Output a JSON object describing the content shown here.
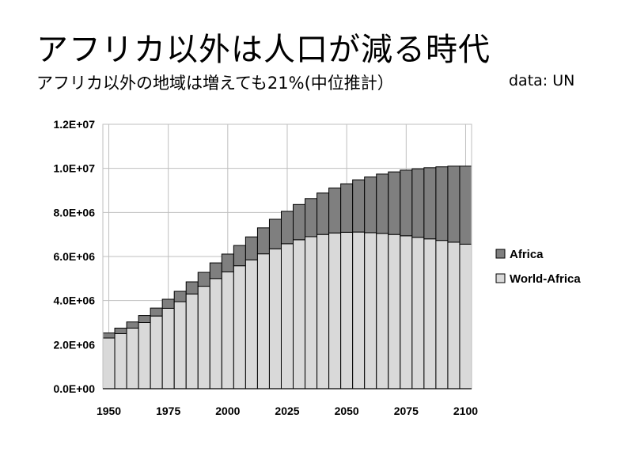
{
  "title": "アフリカ以外は人口が減る時代",
  "subtitle": "アフリカ以外の地域は増えても21%(中位推計）",
  "source": "data:  UN",
  "colors": {
    "africa": "#7f7f7f",
    "world_minus_africa": "#d9d9d9",
    "bar_stroke": "#000000",
    "grid": "#bfbfbf"
  },
  "chart_data": {
    "type": "bar",
    "stacked": true,
    "x": [
      1950,
      1955,
      1960,
      1965,
      1970,
      1975,
      1980,
      1985,
      1990,
      1995,
      2000,
      2005,
      2010,
      2015,
      2020,
      2025,
      2030,
      2035,
      2040,
      2045,
      2050,
      2055,
      2060,
      2065,
      2070,
      2075,
      2080,
      2085,
      2090,
      2095,
      2100
    ],
    "x_tick_labels": [
      "1950",
      "1975",
      "2000",
      "2025",
      "2050",
      "2075",
      "2100"
    ],
    "x_tick_values": [
      1950,
      1975,
      2000,
      2025,
      2050,
      2075,
      2100
    ],
    "series": [
      {
        "name": "World-Africa",
        "color": "#d9d9d9",
        "values": [
          2300000,
          2500000,
          2750000,
          3000000,
          3300000,
          3650000,
          3950000,
          4300000,
          4650000,
          5000000,
          5300000,
          5580000,
          5850000,
          6120000,
          6350000,
          6580000,
          6760000,
          6900000,
          7000000,
          7070000,
          7100000,
          7110000,
          7080000,
          7050000,
          7000000,
          6940000,
          6870000,
          6800000,
          6730000,
          6650000,
          6560000
        ]
      },
      {
        "name": "Africa",
        "color": "#7f7f7f",
        "values": [
          230000,
          250000,
          280000,
          320000,
          360000,
          410000,
          470000,
          550000,
          630000,
          710000,
          810000,
          920000,
          1040000,
          1180000,
          1340000,
          1470000,
          1600000,
          1730000,
          1880000,
          2040000,
          2200000,
          2370000,
          2530000,
          2690000,
          2840000,
          2980000,
          3110000,
          3230000,
          3340000,
          3450000,
          3540000
        ]
      }
    ],
    "legend": [
      "Africa",
      "World-Africa"
    ],
    "legend_position": "right",
    "y_tick_labels": [
      "0.0E+00",
      "2.0E+06",
      "4.0E+06",
      "6.0E+06",
      "8.0E+06",
      "1.0E+07",
      "1.2E+07"
    ],
    "y_tick_values": [
      0,
      2000000,
      4000000,
      6000000,
      8000000,
      10000000,
      12000000
    ],
    "ylim": [
      0,
      12000000
    ],
    "grid": true,
    "xlabel": "",
    "ylabel": ""
  }
}
